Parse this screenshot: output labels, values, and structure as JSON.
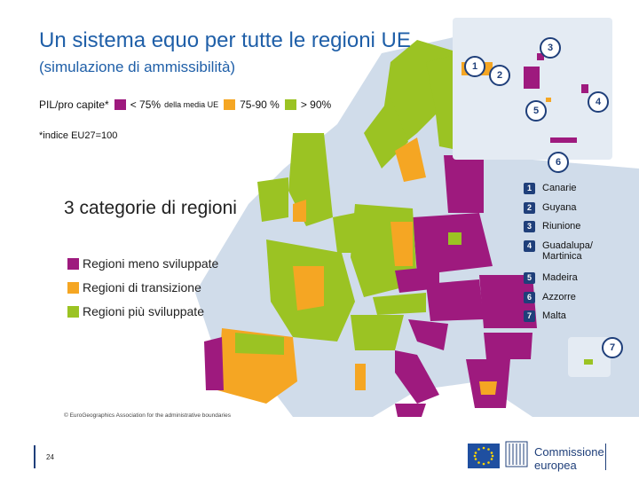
{
  "title": {
    "main": "Un sistema equo per tutte le regioni UE",
    "sub": "(simulazione di ammissibilità)"
  },
  "legend": {
    "label": "PIL/pro capite*",
    "items": [
      {
        "label": "< 75%",
        "suffix": "della media UE",
        "color": "#9e1a7e"
      },
      {
        "label": "75-90 %",
        "color": "#f5a623"
      },
      {
        "label": "> 90%",
        "color": "#9bc323"
      }
    ]
  },
  "footnote": "*indice EU27=100",
  "categories": {
    "title": "3 categorie di regioni",
    "items": [
      {
        "label": "Regioni meno sviluppate",
        "color": "#9e1a7e"
      },
      {
        "label": "Regioni di transizione",
        "color": "#f5a623"
      },
      {
        "label": "Regioni più sviluppate",
        "color": "#9bc323"
      }
    ]
  },
  "outermost": [
    {
      "num": "1",
      "label": "Canarie"
    },
    {
      "num": "2",
      "label": "Guyana"
    },
    {
      "num": "3",
      "label": "Riunione"
    },
    {
      "num": "4",
      "label": "Guadalupa/ Martinica"
    },
    {
      "num": "5",
      "label": "Madeira"
    },
    {
      "num": "6",
      "label": "Azzorre"
    },
    {
      "num": "7",
      "label": "Malta"
    }
  ],
  "map_markers": [
    "1",
    "2",
    "3",
    "4",
    "5",
    "6",
    "7"
  ],
  "copyright": "© EuroGeographics Association for the administrative boundaries",
  "page_number": "24",
  "logo": {
    "line1": "Commissione",
    "line2": "europea"
  },
  "colors": {
    "title": "#1f5fa8",
    "less_developed": "#9e1a7e",
    "transition": "#f5a623",
    "more_developed": "#9bc323",
    "non_eu": "#d0dcea",
    "sea": "#ffffff",
    "badge": "#1f3f7a"
  }
}
